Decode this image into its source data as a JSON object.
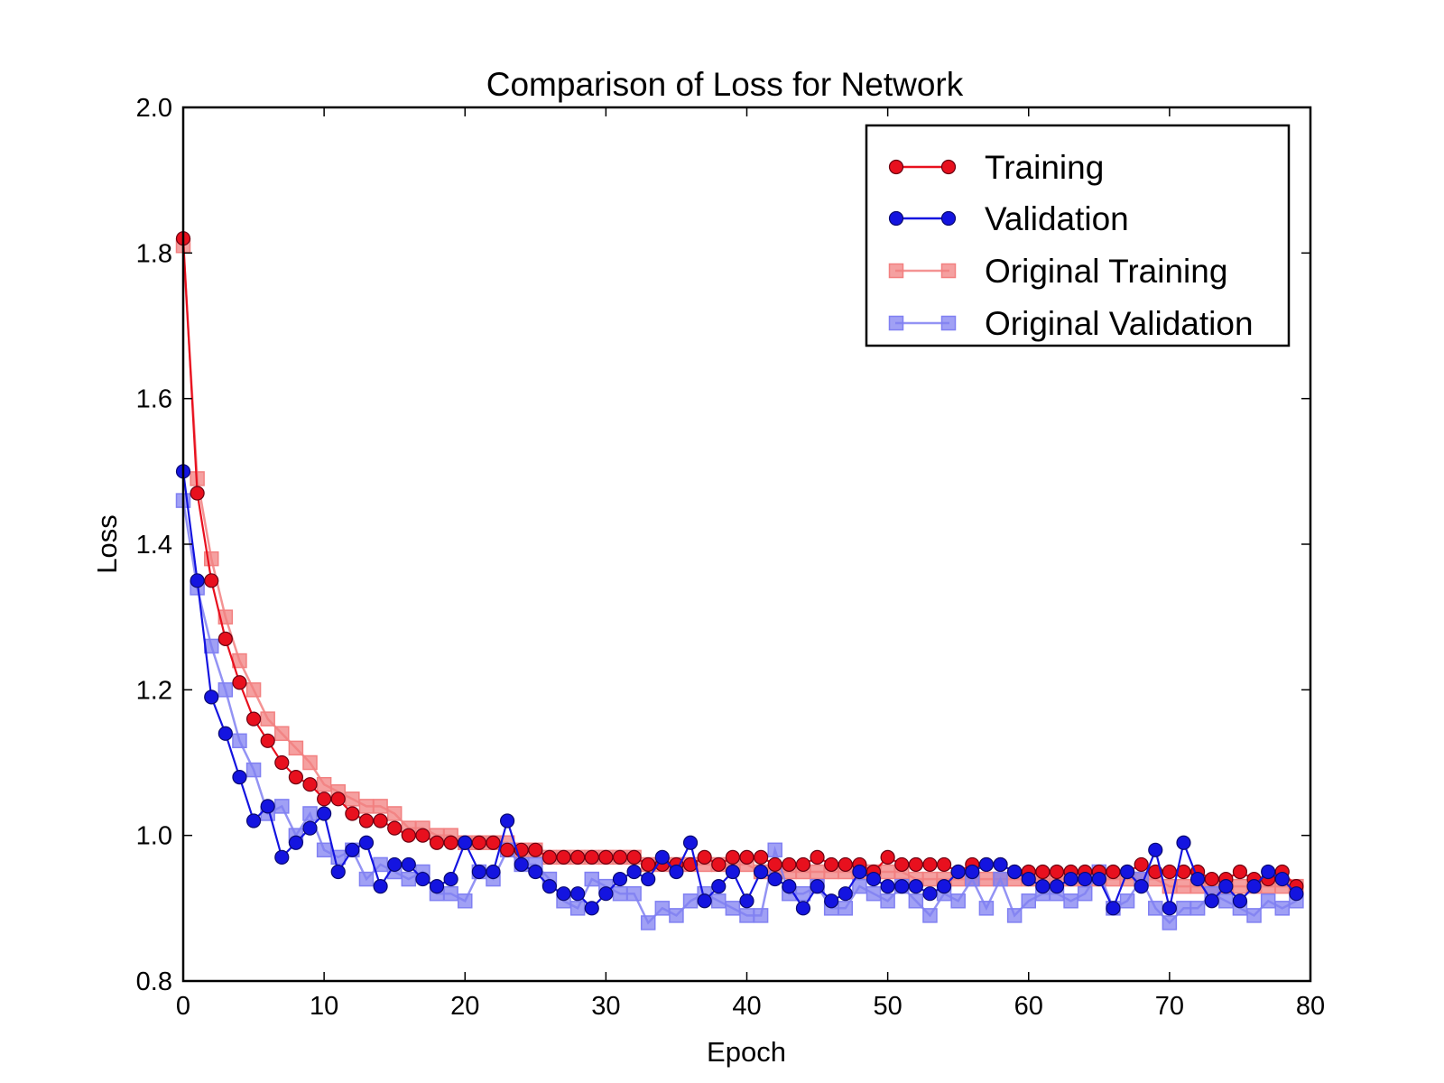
{
  "chart_data": {
    "type": "line",
    "title": "Comparison of Loss for Network",
    "xlabel": "Epoch",
    "ylabel": "Loss",
    "xlim": [
      0,
      80
    ],
    "ylim": [
      0.8,
      2.0
    ],
    "xticks": [
      0,
      10,
      20,
      30,
      40,
      50,
      60,
      70,
      80
    ],
    "yticks": [
      0.8,
      1.0,
      1.2,
      1.4,
      1.6,
      1.8,
      2.0
    ],
    "xtick_labels": [
      "0",
      "10",
      "20",
      "30",
      "40",
      "50",
      "60",
      "70",
      "80"
    ],
    "ytick_labels": [
      "0.8",
      "1.0",
      "1.2",
      "1.4",
      "1.6",
      "1.8",
      "2.0"
    ],
    "grid": false,
    "legend_position": "top-right",
    "series": [
      {
        "name": "Original Training",
        "color": "#f28080",
        "marker": "square",
        "values": [
          1.81,
          1.49,
          1.38,
          1.3,
          1.24,
          1.2,
          1.16,
          1.14,
          1.12,
          1.1,
          1.07,
          1.06,
          1.05,
          1.04,
          1.04,
          1.03,
          1.01,
          1.01,
          1.0,
          1.0,
          0.99,
          0.99,
          0.99,
          0.99,
          0.98,
          0.98,
          0.97,
          0.97,
          0.97,
          0.97,
          0.97,
          0.97,
          0.97,
          0.96,
          0.96,
          0.96,
          0.96,
          0.96,
          0.96,
          0.96,
          0.96,
          0.95,
          0.95,
          0.95,
          0.95,
          0.95,
          0.95,
          0.95,
          0.95,
          0.95,
          0.95,
          0.95,
          0.94,
          0.94,
          0.94,
          0.94,
          0.94,
          0.94,
          0.94,
          0.94,
          0.94,
          0.94,
          0.94,
          0.94,
          0.94,
          0.94,
          0.94,
          0.94,
          0.94,
          0.94,
          0.93,
          0.93,
          0.93,
          0.93,
          0.93,
          0.93,
          0.93,
          0.93,
          0.93,
          0.93
        ]
      },
      {
        "name": "Original Validation",
        "color": "#8080f2",
        "marker": "square",
        "values": [
          1.46,
          1.34,
          1.26,
          1.2,
          1.13,
          1.09,
          1.03,
          1.04,
          1.0,
          1.03,
          0.98,
          0.97,
          0.98,
          0.94,
          0.96,
          0.95,
          0.94,
          0.95,
          0.92,
          0.92,
          0.91,
          0.95,
          0.94,
          0.98,
          0.96,
          0.96,
          0.94,
          0.91,
          0.9,
          0.94,
          0.93,
          0.92,
          0.92,
          0.88,
          0.9,
          0.89,
          0.91,
          0.92,
          0.91,
          0.9,
          0.89,
          0.89,
          0.98,
          0.92,
          0.92,
          0.93,
          0.9,
          0.9,
          0.93,
          0.92,
          0.91,
          0.93,
          0.91,
          0.89,
          0.92,
          0.91,
          0.94,
          0.9,
          0.94,
          0.89,
          0.91,
          0.92,
          0.92,
          0.91,
          0.92,
          0.95,
          0.9,
          0.91,
          0.94,
          0.9,
          0.88,
          0.9,
          0.9,
          0.92,
          0.91,
          0.9,
          0.89,
          0.91,
          0.9,
          0.91
        ]
      },
      {
        "name": "Training",
        "color": "#e8101e",
        "marker": "circle",
        "values": [
          1.82,
          1.47,
          1.35,
          1.27,
          1.21,
          1.16,
          1.13,
          1.1,
          1.08,
          1.07,
          1.05,
          1.05,
          1.03,
          1.02,
          1.02,
          1.01,
          1.0,
          1.0,
          0.99,
          0.99,
          0.99,
          0.99,
          0.99,
          0.98,
          0.98,
          0.98,
          0.97,
          0.97,
          0.97,
          0.97,
          0.97,
          0.97,
          0.97,
          0.96,
          0.96,
          0.96,
          0.96,
          0.97,
          0.96,
          0.97,
          0.97,
          0.97,
          0.96,
          0.96,
          0.96,
          0.97,
          0.96,
          0.96,
          0.96,
          0.95,
          0.97,
          0.96,
          0.96,
          0.96,
          0.96,
          0.95,
          0.96,
          0.96,
          0.96,
          0.95,
          0.95,
          0.95,
          0.95,
          0.95,
          0.95,
          0.95,
          0.95,
          0.95,
          0.96,
          0.95,
          0.95,
          0.95,
          0.95,
          0.94,
          0.94,
          0.95,
          0.94,
          0.94,
          0.95,
          0.93
        ]
      },
      {
        "name": "Validation",
        "color": "#1414e0",
        "marker": "circle",
        "values": [
          1.5,
          1.35,
          1.19,
          1.14,
          1.08,
          1.02,
          1.04,
          0.97,
          0.99,
          1.01,
          1.03,
          0.95,
          0.98,
          0.99,
          0.93,
          0.96,
          0.96,
          0.94,
          0.93,
          0.94,
          0.99,
          0.95,
          0.95,
          1.02,
          0.96,
          0.95,
          0.93,
          0.92,
          0.92,
          0.9,
          0.92,
          0.94,
          0.95,
          0.94,
          0.97,
          0.95,
          0.99,
          0.91,
          0.93,
          0.95,
          0.91,
          0.95,
          0.94,
          0.93,
          0.9,
          0.93,
          0.91,
          0.92,
          0.95,
          0.94,
          0.93,
          0.93,
          0.93,
          0.92,
          0.93,
          0.95,
          0.95,
          0.96,
          0.96,
          0.95,
          0.94,
          0.93,
          0.93,
          0.94,
          0.94,
          0.94,
          0.9,
          0.95,
          0.93,
          0.98,
          0.9,
          0.99,
          0.94,
          0.91,
          0.93,
          0.91,
          0.93,
          0.95,
          0.94,
          0.92
        ]
      }
    ],
    "legend_order": [
      "Training",
      "Validation",
      "Original Training",
      "Original Validation"
    ]
  }
}
